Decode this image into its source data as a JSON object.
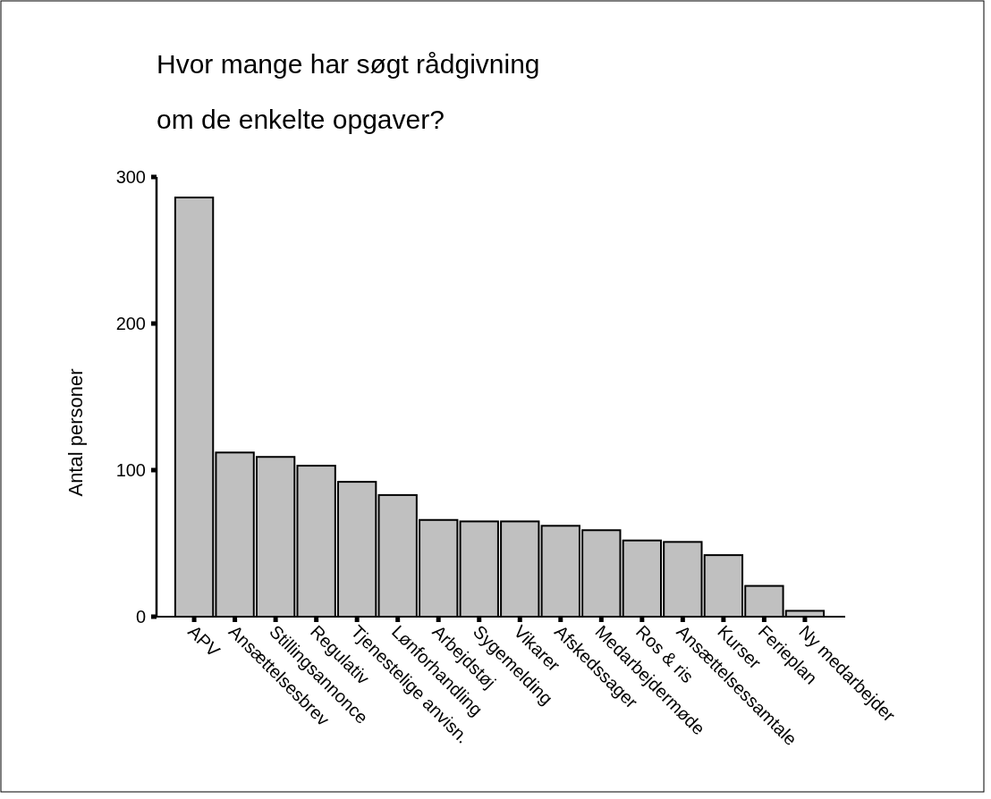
{
  "chart_data": {
    "type": "bar",
    "title": "Hvor mange har søgt rådgivning om de enkelte opgaver?",
    "ylabel": "Antal personer",
    "categories": [
      "APV",
      "Ansættelsesbrev",
      "Stillingsannonce",
      "Regulativ",
      "Tjenestelige anvisn.",
      "Lønforhandling",
      "Arbejdstøj",
      "Sygemelding",
      "Vikarer",
      "Afskedssager",
      "Medarbejdermøde",
      "Ros & ris",
      "Ansættelsessamtale",
      "Kurser",
      "Ferieplan",
      "Ny medarbejder"
    ],
    "values": [
      286,
      112,
      109,
      103,
      92,
      83,
      66,
      65,
      65,
      62,
      59,
      52,
      51,
      42,
      21,
      4
    ],
    "color": "#c0c0c0",
    "ylim": [
      0,
      300
    ],
    "yticks": [
      0,
      100,
      200,
      300
    ],
    "grid": false
  }
}
